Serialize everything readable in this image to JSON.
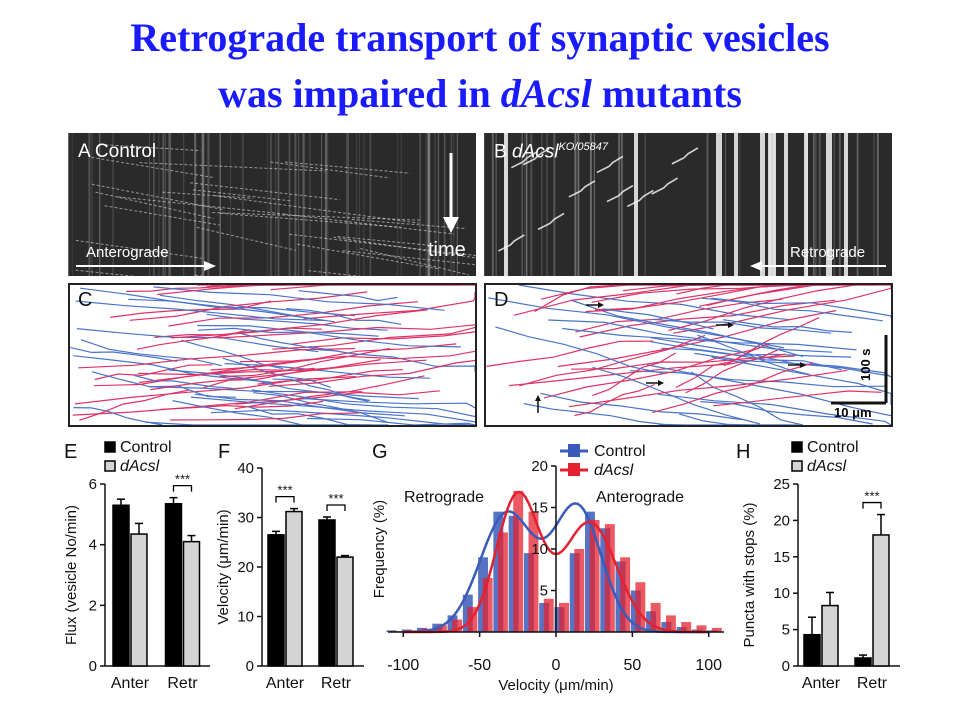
{
  "title": {
    "line1": "Retrograde transport of synaptic vesicles",
    "line2_pre": "was impaired in ",
    "line2_italic": "dAcsl",
    "line2_post": " mutants"
  },
  "panelA": {
    "letter": "A",
    "label": "Control",
    "anterograde": "Anterograde",
    "time": "time"
  },
  "panelB": {
    "letter": "B",
    "label": "dAcsl",
    "superscript": "KO/05847",
    "retrograde": "Retrograde"
  },
  "panelC": {
    "letter": "C"
  },
  "panelD": {
    "letter": "D",
    "scale_time": "100 s",
    "scale_dist": "10 μm"
  },
  "colors": {
    "control": "#000000",
    "dacsl": "#d4d4d4",
    "blue": "#3a5bb8",
    "red": "#e4222f",
    "title": "#1a1aff",
    "pink": "#dd3366",
    "trace_blue": "#4a74c9"
  },
  "chart_data": [
    {
      "panel": "E",
      "type": "bar",
      "ylabel": "Flux (vesicle No/min)",
      "categories": [
        "Anter",
        "Retr"
      ],
      "ylim": [
        0,
        6
      ],
      "yticks": [
        0,
        2,
        4,
        6
      ],
      "series": [
        {
          "name": "Control",
          "values": [
            5.3,
            5.35
          ],
          "errors": [
            0.2,
            0.2
          ]
        },
        {
          "name": "dAcsl",
          "values": [
            4.35,
            4.1
          ],
          "errors": [
            0.35,
            0.2
          ]
        }
      ],
      "significance": [
        {
          "category": "Retr",
          "label": "***"
        }
      ],
      "legend_position": "top"
    },
    {
      "panel": "F",
      "type": "bar",
      "ylabel": "Velocity (μm/min)",
      "categories": [
        "Anter",
        "Retr"
      ],
      "ylim": [
        0,
        40
      ],
      "yticks": [
        0,
        10,
        20,
        30,
        40
      ],
      "series": [
        {
          "name": "Control",
          "values": [
            26.5,
            29.5
          ],
          "errors": [
            0.7,
            0.6
          ]
        },
        {
          "name": "dAcsl",
          "values": [
            31.2,
            22.0
          ],
          "errors": [
            0.6,
            0.3
          ]
        }
      ],
      "significance": [
        {
          "category": "Anter",
          "label": "***"
        },
        {
          "category": "Retr",
          "label": "***"
        }
      ]
    },
    {
      "panel": "G",
      "type": "bar",
      "xlabel": "Velocity (μm/min)",
      "ylabel": "Frequency (%)",
      "xlim": [
        -110,
        110
      ],
      "ylim": [
        0,
        20
      ],
      "xticks": [
        -100,
        -50,
        0,
        50,
        100
      ],
      "yticks": [
        5,
        10,
        15,
        20
      ],
      "annotations": [
        "Retrograde",
        "Anterograde"
      ],
      "legend_position": "top",
      "x": [
        -105,
        -95,
        -85,
        -75,
        -65,
        -55,
        -45,
        -35,
        -25,
        -15,
        -5,
        5,
        15,
        25,
        35,
        45,
        55,
        65,
        75,
        85,
        95,
        105
      ],
      "series": [
        {
          "name": "Control",
          "values": [
            0.2,
            0.3,
            0.5,
            1.0,
            2.0,
            4.5,
            9.0,
            14.5,
            14.0,
            9.5,
            3.5,
            3.0,
            9.5,
            14.5,
            12.5,
            8.5,
            5.0,
            2.5,
            1.2,
            0.6,
            0.3,
            0.2
          ]
        },
        {
          "name": "dAcsl",
          "values": [
            0.1,
            0.2,
            0.4,
            0.8,
            1.5,
            3.0,
            6.5,
            12.0,
            17.0,
            14.5,
            4.0,
            3.5,
            10.0,
            13.5,
            13.0,
            9.0,
            6.0,
            3.5,
            2.0,
            1.2,
            0.8,
            0.5
          ]
        }
      ]
    },
    {
      "panel": "H",
      "type": "bar",
      "ylabel": "Puncta with stops (%)",
      "categories": [
        "Anter",
        "Retr"
      ],
      "ylim": [
        0,
        25
      ],
      "yticks": [
        0,
        5,
        10,
        15,
        20,
        25
      ],
      "series": [
        {
          "name": "Control",
          "values": [
            4.3,
            1.1
          ],
          "errors": [
            2.4,
            0.4
          ]
        },
        {
          "name": "dAcsl",
          "values": [
            8.3,
            18.0
          ],
          "errors": [
            1.8,
            2.8
          ]
        }
      ],
      "significance": [
        {
          "category": "Retr",
          "label": "***"
        }
      ],
      "legend_position": "top"
    }
  ]
}
